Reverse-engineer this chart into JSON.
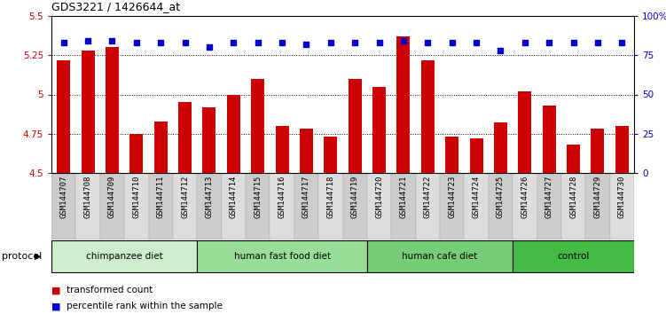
{
  "title": "GDS3221 / 1426644_at",
  "samples": [
    "GSM144707",
    "GSM144708",
    "GSM144709",
    "GSM144710",
    "GSM144711",
    "GSM144712",
    "GSM144713",
    "GSM144714",
    "GSM144715",
    "GSM144716",
    "GSM144717",
    "GSM144718",
    "GSM144719",
    "GSM144720",
    "GSM144721",
    "GSM144722",
    "GSM144723",
    "GSM144724",
    "GSM144725",
    "GSM144726",
    "GSM144727",
    "GSM144728",
    "GSM144729",
    "GSM144730"
  ],
  "bar_values": [
    5.22,
    5.28,
    5.3,
    4.75,
    4.83,
    4.95,
    4.92,
    5.0,
    5.1,
    4.8,
    4.78,
    4.73,
    5.1,
    5.05,
    5.37,
    5.22,
    4.73,
    4.72,
    4.82,
    5.02,
    4.93,
    4.68,
    4.78,
    4.8
  ],
  "percentile_values": [
    83,
    84,
    84,
    83,
    83,
    83,
    80,
    83,
    83,
    83,
    82,
    83,
    83,
    83,
    84,
    83,
    83,
    83,
    78,
    83,
    83,
    83,
    83,
    83
  ],
  "bar_color": "#cc0000",
  "percentile_color": "#0000cc",
  "ylim_left": [
    4.5,
    5.5
  ],
  "ylim_right": [
    0,
    100
  ],
  "yticks_left": [
    4.5,
    4.75,
    5.0,
    5.25,
    5.5
  ],
  "ytick_labels_left": [
    "4.5",
    "4.75",
    "5",
    "5.25",
    "5.5"
  ],
  "yticks_right": [
    0,
    25,
    50,
    75,
    100
  ],
  "ytick_labels_right": [
    "0",
    "25",
    "50",
    "75",
    "100%"
  ],
  "grid_values": [
    4.75,
    5.0,
    5.25
  ],
  "groups": [
    {
      "label": "chimpanzee diet",
      "start": 0,
      "end": 6,
      "color": "#cceecc"
    },
    {
      "label": "human fast food diet",
      "start": 6,
      "end": 13,
      "color": "#99dd99"
    },
    {
      "label": "human cafe diet",
      "start": 13,
      "end": 19,
      "color": "#77cc77"
    },
    {
      "label": "control",
      "start": 19,
      "end": 24,
      "color": "#44bb44"
    }
  ],
  "legend_bar_label": "transformed count",
  "legend_pct_label": "percentile rank within the sample",
  "protocol_label": "protocol",
  "background_color": "#ffffff",
  "col_color_even": "#cccccc",
  "col_color_odd": "#dddddd"
}
